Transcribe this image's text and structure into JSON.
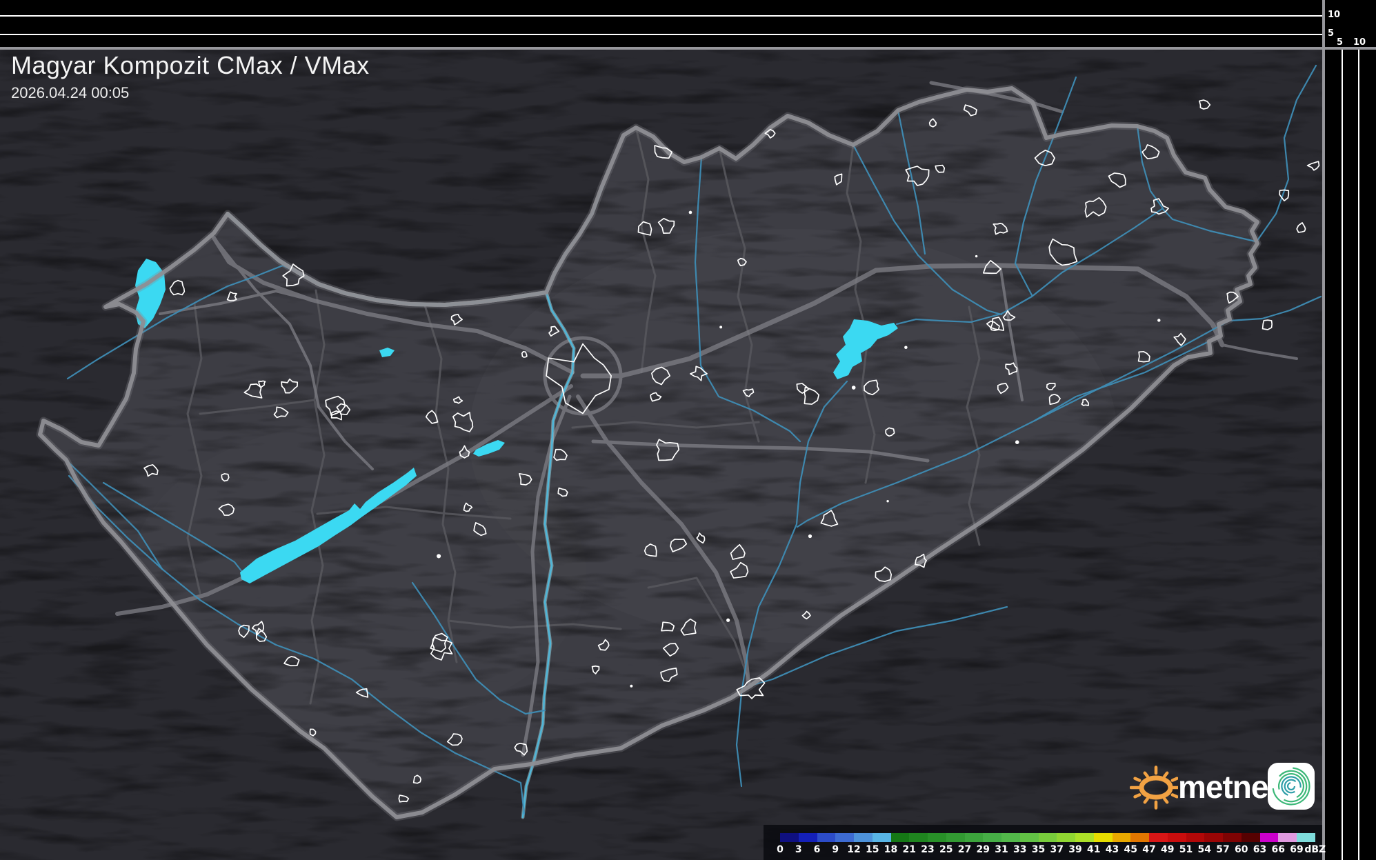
{
  "header": {
    "title": "Magyar Kompozit CMax / VMax",
    "timestamp": "2026.04.24 00:05"
  },
  "profile_scales": {
    "top_labels": [
      "10",
      "5"
    ],
    "corner_labels": [
      "5",
      "10"
    ]
  },
  "legend": {
    "labels": [
      "0",
      "3",
      "6",
      "9",
      "12",
      "15",
      "18",
      "21",
      "23",
      "25",
      "27",
      "29",
      "31",
      "33",
      "35",
      "37",
      "39",
      "41",
      "43",
      "45",
      "47",
      "49",
      "51",
      "54",
      "57",
      "60",
      "63",
      "66",
      "69",
      "dBZ"
    ],
    "colors": [
      "#0F1080",
      "#1420B8",
      "#2C4CC8",
      "#3D6BD2",
      "#4D92DA",
      "#58B5E6",
      "#157815",
      "#1F851F",
      "#289028",
      "#329A32",
      "#3CA43C",
      "#46AE46",
      "#52B84A",
      "#62C245",
      "#78CC3C",
      "#90D632",
      "#ACE028",
      "#E6DC00",
      "#E8A800",
      "#E27600",
      "#D81616",
      "#C90D0D",
      "#B20808",
      "#9A0505",
      "#7E0303",
      "#560101",
      "#CC00CC",
      "#E09AE0",
      "#7EDCDC"
    ]
  },
  "branding": {
    "name": "metnet",
    "sun_color": "#F2A243",
    "spiral_colors": [
      "#2E9EA8",
      "#3CB878"
    ]
  },
  "map_colors": {
    "terrain_outside": "#2A2A30",
    "terrain_inside": "#3D3D44",
    "plain_wash": "#47474e",
    "border": "#85858B",
    "county": "#56565c",
    "road": "#7F7F86",
    "river": "#3E8CB4",
    "danube_halo": "#9FC8D2",
    "danube_core": "#4FB6D8",
    "lake": "#3BD9F2",
    "settlement_outline": "#FFFFFF",
    "scale_line": "#FFFFFF"
  }
}
